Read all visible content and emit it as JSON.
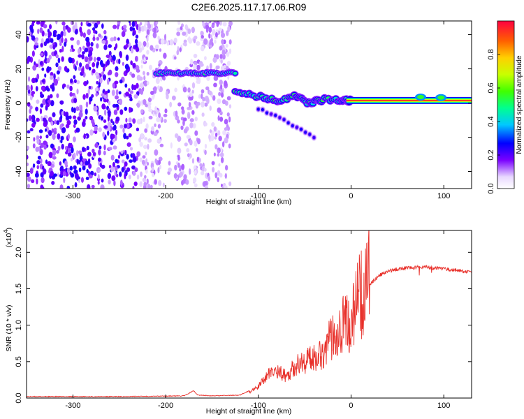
{
  "figure": {
    "title": "C2E6.2025.117.17.06.R09"
  },
  "chart_data": [
    {
      "type": "heatmap",
      "xlabel": "Height of straight line (km)",
      "ylabel": "Frequency (Hz)",
      "xlim": [
        -350,
        130
      ],
      "ylim": [
        -50,
        48
      ],
      "x_ticks": [
        -300,
        -200,
        -100,
        0,
        100
      ],
      "x_tick_labels": [
        "-300",
        "-200",
        "-100",
        "0",
        "100"
      ],
      "y_ticks": [
        -40,
        -20,
        0,
        20,
        40
      ],
      "y_tick_labels": [
        "-40",
        "-20",
        "0",
        "20",
        "40"
      ],
      "colorbar": {
        "label": "Normalized spectral amplitude",
        "range": [
          0,
          1
        ],
        "ticks": [
          0,
          0.2,
          0.4,
          0.6,
          0.8
        ],
        "tick_labels": [
          "0.0",
          "0.2",
          "0.4",
          "0.6",
          "0.8"
        ],
        "colormap": "rainbow"
      },
      "features": [
        {
          "name": "noise",
          "x_range": [
            -350,
            -130
          ],
          "y_range": [
            -50,
            48
          ],
          "amplitude": 0.12
        },
        {
          "name": "upper-track",
          "x_range": [
            -210,
            -125
          ],
          "freq": 17.5,
          "amplitude": 0.42
        },
        {
          "name": "descending-track",
          "points": [
            [
              -125,
              7
            ],
            [
              -100,
              4
            ],
            [
              -80,
              1
            ],
            [
              -60,
              4
            ],
            [
              -45,
              0
            ],
            [
              -30,
              2
            ],
            [
              -10,
              1.5
            ],
            [
              0,
              1.5
            ]
          ],
          "amplitude": 0.45
        },
        {
          "name": "lower-branch",
          "points": [
            [
              -100,
              -3
            ],
            [
              -80,
              -8
            ],
            [
              -60,
              -14
            ],
            [
              -40,
              -20
            ]
          ],
          "amplitude": 0.22
        },
        {
          "name": "steady-tone",
          "x_range": [
            -5,
            130
          ],
          "freq": 1.5,
          "amplitude": 0.97
        }
      ]
    },
    {
      "type": "line",
      "xlabel": "Height of straight line (km)",
      "ylabel": "SNR (10 * v/v)",
      "y_multiplier": "(x10",
      "y_multiplier_exp": "4",
      "y_multiplier_close": ")",
      "xlim": [
        -350,
        130
      ],
      "ylim": [
        0,
        2.3
      ],
      "x_ticks": [
        -300,
        -200,
        -100,
        0,
        100
      ],
      "x_tick_labels": [
        "-300",
        "-200",
        "-100",
        "0",
        "100"
      ],
      "y_ticks": [
        0,
        0.5,
        1.0,
        1.5,
        2.0
      ],
      "y_tick_labels": [
        "0.0",
        "0.5",
        "1.0",
        "1.5",
        "2.0"
      ],
      "series": [
        {
          "color": "#e8302a",
          "x": [
            -350,
            -250,
            -180,
            -170,
            -165,
            -150,
            -120,
            -110,
            -100,
            -90,
            -80,
            -70,
            -60,
            -50,
            -40,
            -30,
            -20,
            -10,
            0,
            5,
            10,
            15,
            20,
            25,
            30,
            40,
            50,
            60,
            70,
            75,
            80,
            90,
            100,
            110,
            120,
            130
          ],
          "y": [
            0.02,
            0.02,
            0.03,
            0.1,
            0.04,
            0.03,
            0.04,
            0.1,
            0.2,
            0.4,
            0.45,
            0.35,
            0.5,
            0.55,
            0.6,
            0.65,
            0.85,
            1.0,
            0.95,
            1.2,
            1.3,
            1.45,
            1.55,
            1.62,
            1.68,
            1.74,
            1.77,
            1.79,
            1.79,
            1.8,
            1.8,
            1.78,
            1.77,
            1.76,
            1.74,
            1.73
          ]
        }
      ]
    }
  ]
}
